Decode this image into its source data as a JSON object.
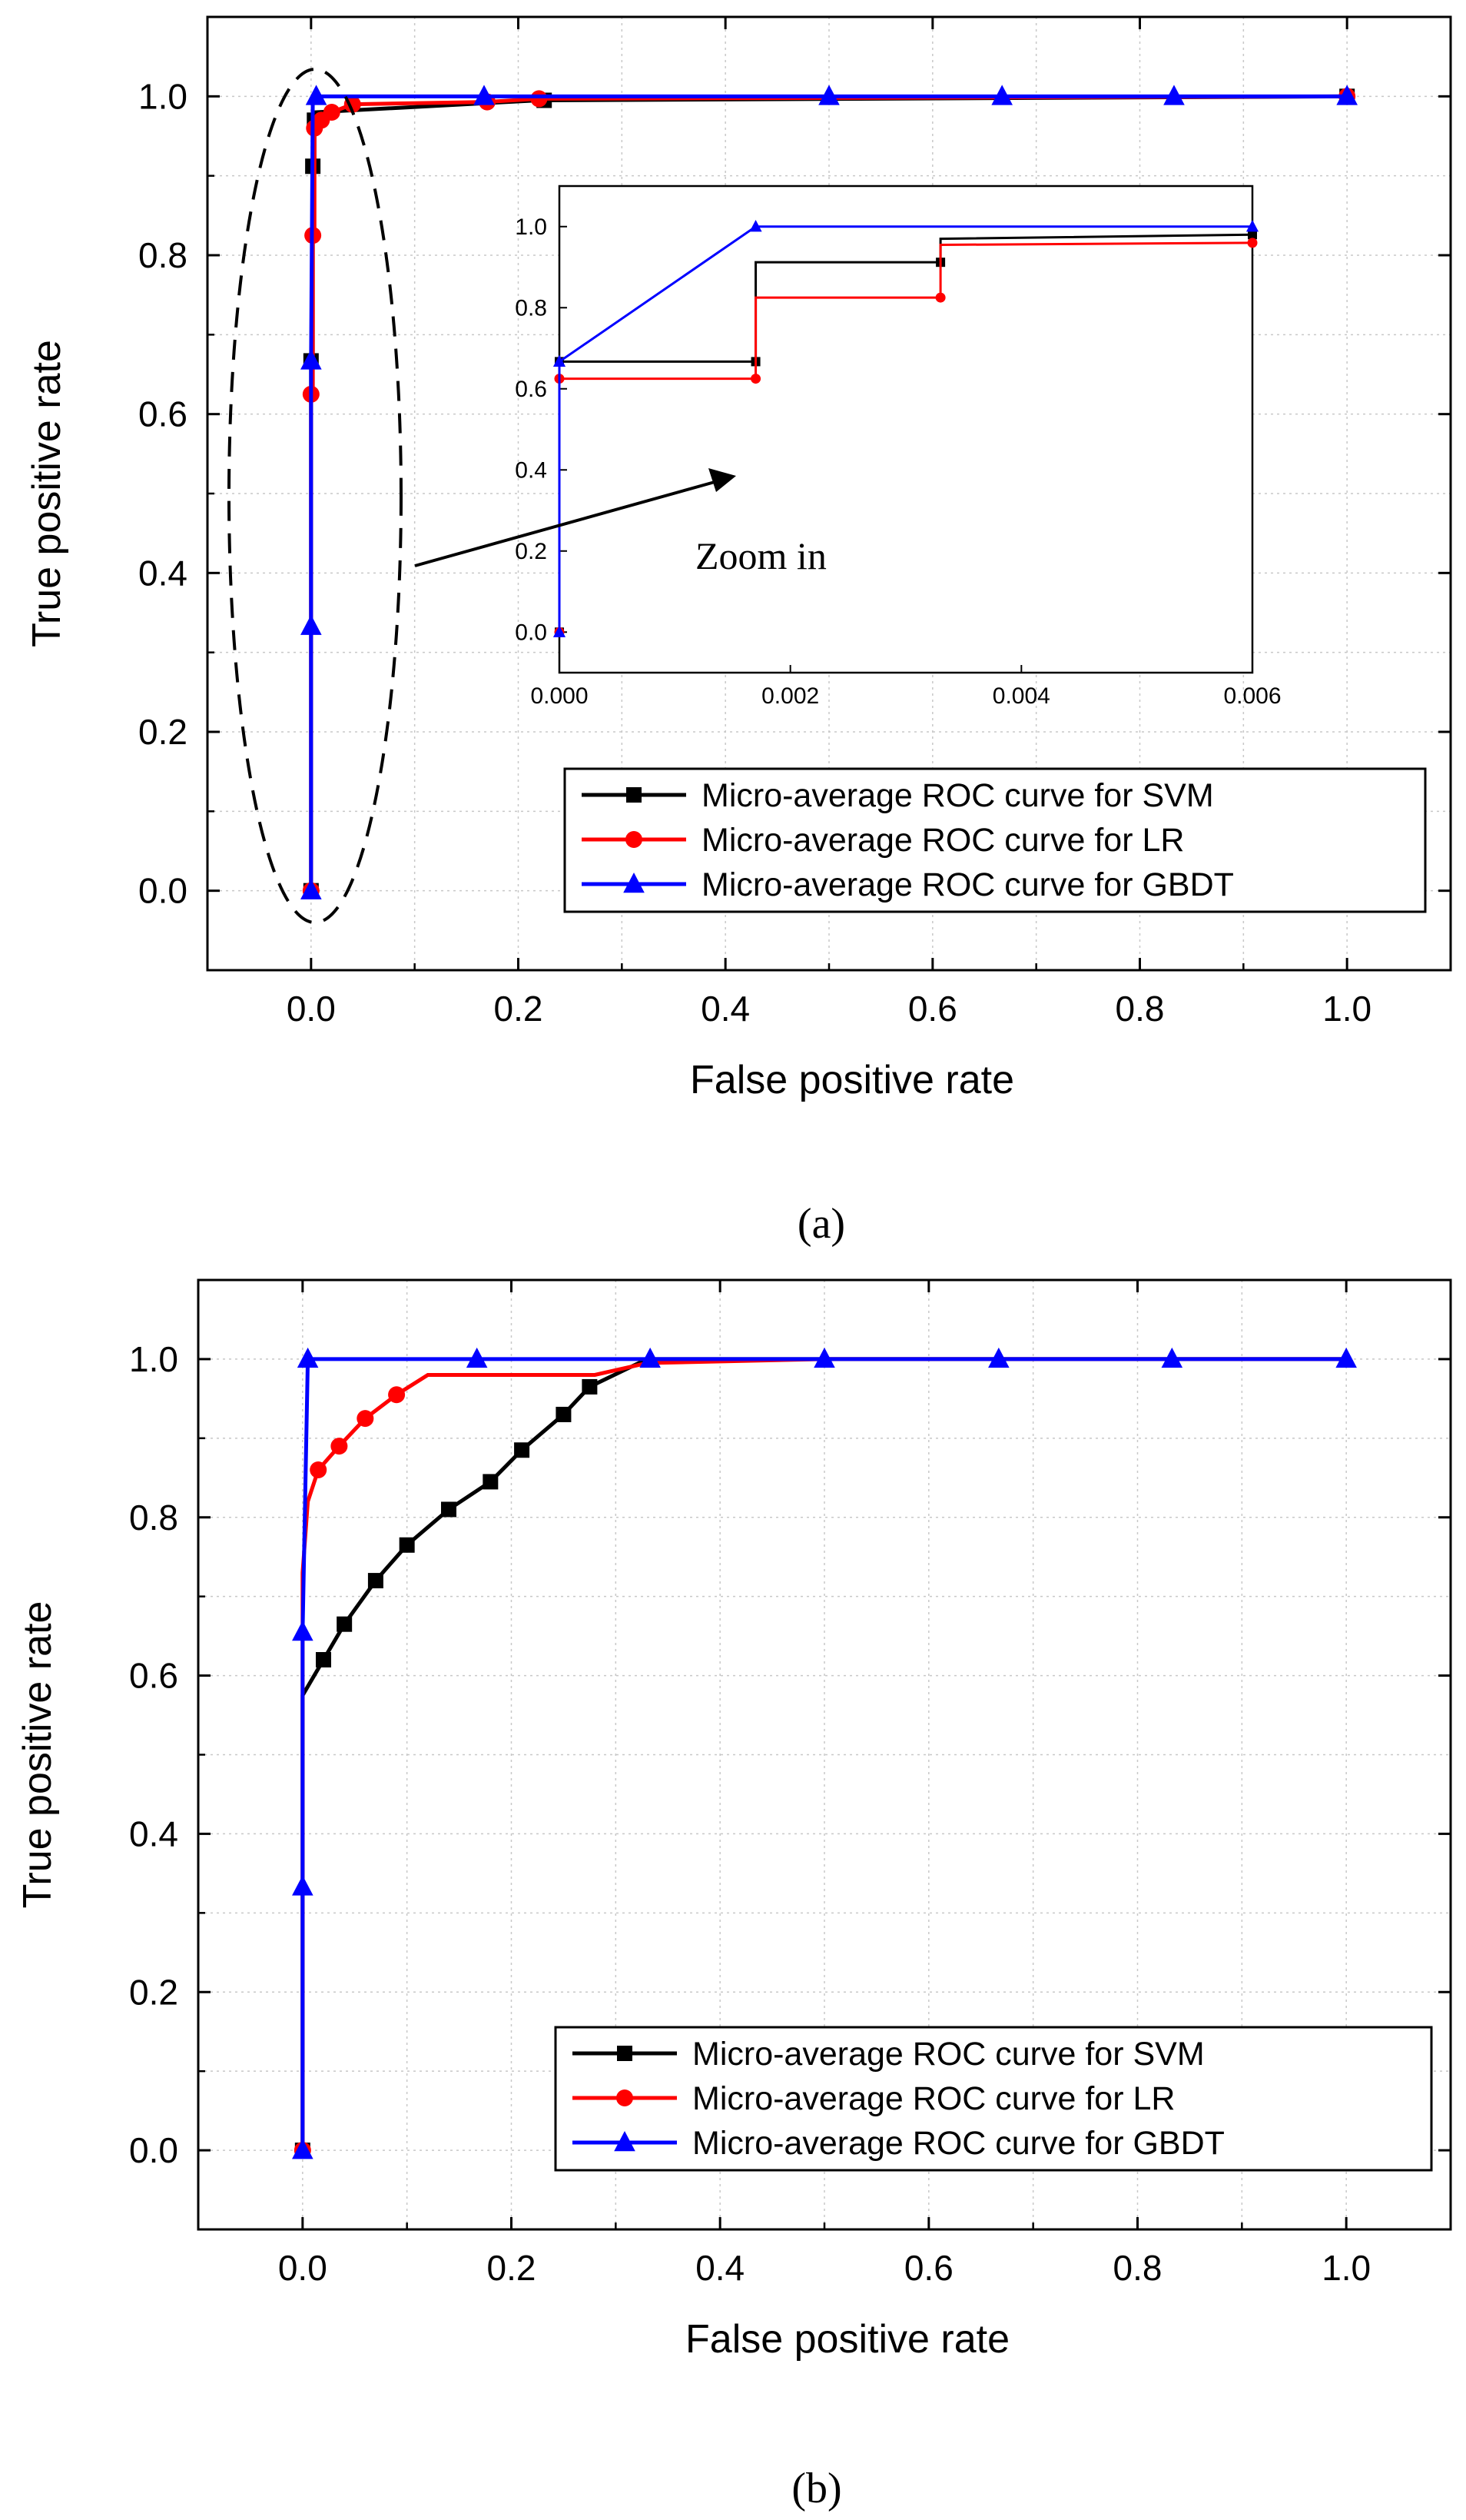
{
  "chart_data": [
    {
      "panel_label": "(a)",
      "type": "line",
      "xlabel": "False positive rate",
      "ylabel": "True positive rate",
      "xlim": [
        -0.1,
        1.1
      ],
      "ylim": [
        -0.1,
        1.1
      ],
      "xticks": [
        "0.0",
        "0.2",
        "0.4",
        "0.6",
        "0.8",
        "1.0"
      ],
      "yticks": [
        "0.0",
        "0.2",
        "0.4",
        "0.6",
        "0.8",
        "1.0"
      ],
      "grid": true,
      "legend_position": "bottom-right",
      "series": [
        {
          "name": "Micro-average ROC curve for SVM",
          "color": "#000000",
          "marker": "square",
          "x": [
            0.0,
            0.0,
            0.0017,
            0.0017,
            0.0033,
            0.0033,
            0.005,
            0.22,
            1.0
          ],
          "y": [
            0.0,
            0.667,
            0.667,
            0.912,
            0.912,
            0.97,
            0.98,
            0.995,
            1.0
          ],
          "marker_x": [
            0.0,
            0.0,
            0.0017,
            0.0033,
            0.225,
            1.0
          ],
          "marker_y": [
            0.0,
            0.667,
            0.912,
            0.97,
            0.995,
            1.0
          ]
        },
        {
          "name": "Micro-average ROC curve for LR",
          "color": "#ff0000",
          "marker": "circle",
          "x": [
            0.0,
            0.0,
            0.0017,
            0.0017,
            0.0033,
            0.0033,
            0.01,
            0.02,
            0.04,
            0.17,
            0.22,
            1.0
          ],
          "y": [
            0.0,
            0.625,
            0.625,
            0.825,
            0.825,
            0.96,
            0.97,
            0.98,
            0.99,
            0.993,
            0.997,
            1.0
          ],
          "marker_x": [
            0.0,
            0.0,
            0.0017,
            0.0033,
            0.01,
            0.02,
            0.04,
            0.17,
            0.22,
            1.0
          ],
          "marker_y": [
            0.0,
            0.625,
            0.825,
            0.96,
            0.97,
            0.98,
            0.99,
            0.993,
            0.997,
            1.0
          ]
        },
        {
          "name": "Micro-average ROC curve for GBDT",
          "color": "#0000ff",
          "marker": "triangle",
          "x": [
            0.0,
            0.0,
            0.0,
            0.0017,
            0.005,
            0.167,
            0.5,
            0.667,
            0.833,
            1.0
          ],
          "y": [
            0.0,
            0.333,
            0.667,
            1.0,
            1.0,
            1.0,
            1.0,
            1.0,
            1.0,
            1.0
          ],
          "marker_x": [
            0.0,
            0.0,
            0.0,
            0.005,
            0.167,
            0.5,
            0.667,
            0.833,
            1.0
          ],
          "marker_y": [
            0.0,
            0.333,
            0.667,
            1.0,
            1.0,
            1.0,
            1.0,
            1.0,
            1.0
          ]
        }
      ],
      "annotation": "Zoom in",
      "inset": {
        "xlim": [
          0.0,
          0.006
        ],
        "ylim": [
          -0.1,
          1.1
        ],
        "xticks": [
          "0.000",
          "0.002",
          "0.004",
          "0.006"
        ],
        "yticks": [
          "0.0",
          "0.2",
          "0.4",
          "0.6",
          "0.8",
          "1.0"
        ],
        "series": [
          {
            "name": "SVM",
            "color": "#000000",
            "marker": "square",
            "x": [
              0.0,
              0.0,
              0.0017,
              0.0017,
              0.0033,
              0.0033,
              0.006
            ],
            "y": [
              0.0,
              0.667,
              0.667,
              0.912,
              0.912,
              0.97,
              0.98
            ]
          },
          {
            "name": "LR",
            "color": "#ff0000",
            "marker": "circle",
            "x": [
              0.0,
              0.0,
              0.0017,
              0.0017,
              0.0033,
              0.0033,
              0.006
            ],
            "y": [
              0.0,
              0.625,
              0.625,
              0.825,
              0.825,
              0.955,
              0.96
            ]
          },
          {
            "name": "GBDT",
            "color": "#0000ff",
            "marker": "triangle",
            "x": [
              0.0,
              0.0,
              0.0017,
              0.006
            ],
            "y": [
              0.0,
              0.667,
              1.0,
              1.0
            ]
          }
        ]
      }
    },
    {
      "panel_label": "(b)",
      "type": "line",
      "xlabel": "False positive rate",
      "ylabel": "True positive rate",
      "xlim": [
        -0.1,
        1.1
      ],
      "ylim": [
        -0.1,
        1.1
      ],
      "xticks": [
        "0.0",
        "0.2",
        "0.4",
        "0.6",
        "0.8",
        "1.0"
      ],
      "yticks": [
        "0.0",
        "0.2",
        "0.4",
        "0.6",
        "0.8",
        "1.0"
      ],
      "grid": true,
      "legend_position": "bottom-right",
      "series": [
        {
          "name": "Micro-average ROC curve for SVM",
          "color": "#000000",
          "marker": "square",
          "x": [
            0.0,
            0.0,
            0.0,
            0.02,
            0.04,
            0.07,
            0.1,
            0.14,
            0.18,
            0.21,
            0.25,
            0.275,
            0.33,
            1.0
          ],
          "y": [
            0.0,
            0.5,
            0.575,
            0.62,
            0.665,
            0.72,
            0.765,
            0.81,
            0.845,
            0.885,
            0.93,
            0.965,
            1.0,
            1.0
          ],
          "marker_x": [
            0.0,
            0.02,
            0.04,
            0.07,
            0.1,
            0.14,
            0.18,
            0.21,
            0.25,
            0.275
          ],
          "marker_y": [
            0.0,
            0.62,
            0.665,
            0.72,
            0.765,
            0.81,
            0.845,
            0.885,
            0.93,
            0.965
          ]
        },
        {
          "name": "Micro-average ROC curve for LR",
          "color": "#ff0000",
          "marker": "circle",
          "x": [
            0.0,
            0.0,
            0.005,
            0.015,
            0.035,
            0.06,
            0.09,
            0.12,
            0.28,
            0.33,
            0.5,
            1.0
          ],
          "y": [
            0.0,
            0.73,
            0.82,
            0.86,
            0.89,
            0.925,
            0.955,
            0.98,
            0.98,
            0.995,
            1.0,
            1.0
          ],
          "marker_x": [
            0.0,
            0.015,
            0.035,
            0.06,
            0.09
          ],
          "marker_y": [
            0.0,
            0.86,
            0.89,
            0.925,
            0.955
          ]
        },
        {
          "name": "Micro-average ROC curve for GBDT",
          "color": "#0000ff",
          "marker": "triangle",
          "x": [
            0.0,
            0.0,
            0.0,
            0.005,
            0.167,
            0.333,
            0.5,
            0.667,
            0.833,
            1.0
          ],
          "y": [
            0.0,
            0.333,
            0.655,
            1.0,
            1.0,
            1.0,
            1.0,
            1.0,
            1.0,
            1.0
          ],
          "marker_x": [
            0.0,
            0.0,
            0.0,
            0.005,
            0.167,
            0.333,
            0.5,
            0.667,
            0.833,
            1.0
          ],
          "marker_y": [
            0.0,
            0.333,
            0.655,
            1.0,
            1.0,
            1.0,
            1.0,
            1.0,
            1.0,
            1.0
          ]
        }
      ]
    }
  ]
}
